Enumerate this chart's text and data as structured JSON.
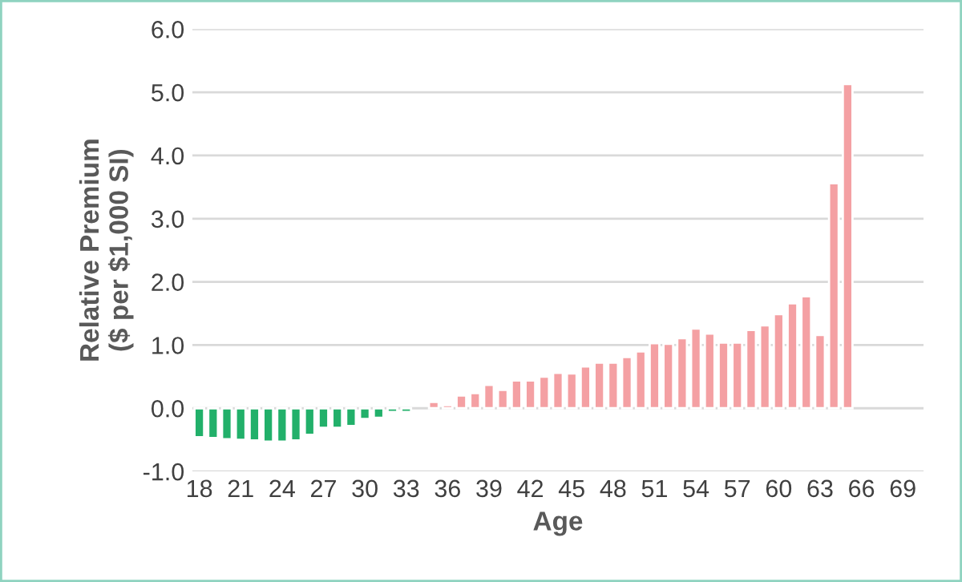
{
  "chart_data": {
    "type": "bar",
    "xlabel": "Age",
    "ylabel": "Relative Premium\n($ per $1,000 SI)",
    "categories": [
      "18",
      null,
      null,
      "21",
      null,
      null,
      "24",
      null,
      null,
      "27",
      null,
      null,
      "30",
      null,
      null,
      "33",
      null,
      null,
      "36",
      null,
      null,
      "39",
      null,
      null,
      "42",
      null,
      null,
      "45",
      null,
      null,
      "48",
      null,
      null,
      "51",
      null,
      null,
      "54",
      null,
      null,
      "57",
      null,
      null,
      "60",
      null,
      null,
      "63",
      null,
      null,
      "66",
      null,
      null,
      "69",
      null
    ],
    "values": [
      -0.46,
      -0.47,
      -0.49,
      -0.5,
      -0.51,
      -0.53,
      -0.53,
      -0.51,
      -0.42,
      -0.31,
      -0.31,
      -0.28,
      -0.17,
      -0.15,
      -0.06,
      -0.06,
      null,
      0.1,
      0.05,
      0.2,
      0.24,
      0.37,
      0.29,
      0.44,
      0.44,
      0.5,
      0.56,
      0.55,
      0.66,
      0.72,
      0.72,
      0.81,
      0.9,
      1.03,
      1.02,
      1.11,
      1.26,
      1.18,
      1.04,
      1.04,
      1.24,
      1.31,
      1.49,
      1.66,
      1.77,
      1.16,
      3.56,
      5.13,
      null,
      null,
      null,
      null,
      null
    ],
    "colors": [
      "#22b06a",
      "#22b06a",
      "#22b06a",
      "#22b06a",
      "#22b06a",
      "#22b06a",
      "#22b06a",
      "#22b06a",
      "#22b06a",
      "#22b06a",
      "#22b06a",
      "#22b06a",
      "#22b06a",
      "#22b06a",
      "#22b06a",
      "#22b06a",
      "#f4a0a3",
      "#f4a0a3",
      "#f4a0a3",
      "#f4a0a3",
      "#f4a0a3",
      "#f4a0a3",
      "#f4a0a3",
      "#f4a0a3",
      "#f4a0a3",
      "#f4a0a3",
      "#f4a0a3",
      "#f4a0a3",
      "#f4a0a3",
      "#f4a0a3",
      "#f4a0a3",
      "#f4a0a3",
      "#f4a0a3",
      "#f4a0a3",
      "#f4a0a3",
      "#f4a0a3",
      "#f4a0a3",
      "#f4a0a3",
      "#f4a0a3",
      "#f4a0a3",
      "#f4a0a3",
      "#f4a0a3",
      "#f4a0a3",
      "#f4a0a3",
      "#f4a0a3",
      "#f4a0a3",
      "#f4a0a3",
      "#f4a0a3",
      "#f4a0a3",
      "#f4a0a3",
      "#f4a0a3",
      "#f4a0a3",
      "#f4a0a3"
    ],
    "ylim": [
      -1.0,
      6.0
    ],
    "yticks": [
      {
        "value": -1,
        "label": "-1.0"
      },
      {
        "value": 0,
        "label": "0.0"
      },
      {
        "value": 1,
        "label": "1.0"
      },
      {
        "value": 2,
        "label": "2.0"
      },
      {
        "value": 3,
        "label": "3.0"
      },
      {
        "value": 4,
        "label": "4.0"
      },
      {
        "value": 5,
        "label": "5.0"
      },
      {
        "value": 6,
        "label": "6.0"
      }
    ],
    "grid": "y",
    "legend": false
  }
}
